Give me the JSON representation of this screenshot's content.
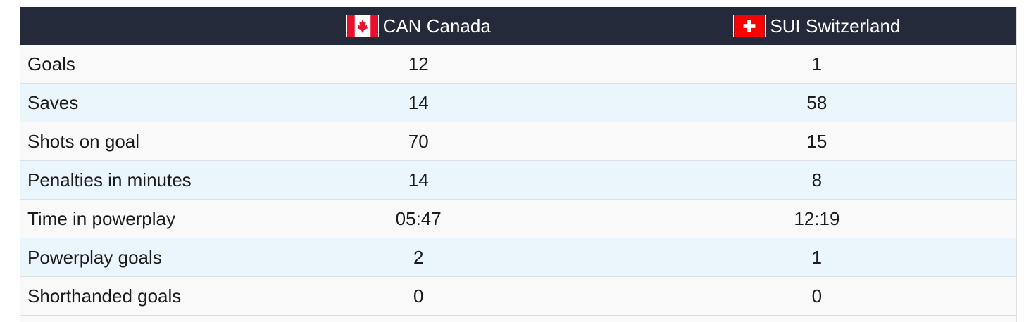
{
  "table": {
    "header": [
      "CAN Canada",
      "SUI Switzerland"
    ],
    "rows": [
      [
        "Goals",
        12,
        1
      ],
      [
        "Saves",
        14,
        58
      ],
      [
        "Shots on goal",
        70,
        15
      ],
      [
        "Penalties in minutes",
        14,
        8
      ],
      [
        "Time in powerplay",
        "05:47",
        "12:19"
      ],
      [
        "Powerplay goals",
        2,
        1
      ],
      [
        "Shorthanded goals",
        0,
        0
      ]
    ]
  }
}
